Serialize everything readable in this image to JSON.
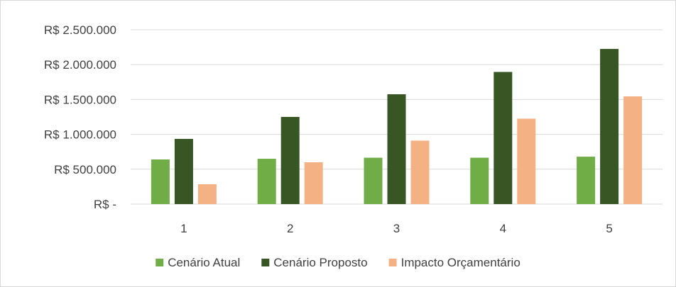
{
  "chart_data": {
    "type": "bar",
    "categories": [
      "1",
      "2",
      "3",
      "4",
      "5"
    ],
    "series": [
      {
        "name": "Cenário Atual",
        "color": "#70ad47",
        "values": [
          640000,
          650000,
          665000,
          665000,
          680000
        ]
      },
      {
        "name": "Cenário Proposto",
        "color": "#375623",
        "values": [
          935000,
          1250000,
          1575000,
          1895000,
          2225000
        ]
      },
      {
        "name": "Impacto Orçamentário",
        "color": "#f4b183",
        "values": [
          285000,
          600000,
          910000,
          1225000,
          1545000
        ]
      }
    ],
    "ylim": [
      0,
      2500000
    ],
    "y_ticks": [
      0,
      500000,
      1000000,
      1500000,
      2000000,
      2500000
    ],
    "y_tick_labels": [
      "R$ -",
      "R$ 500.000",
      "R$ 1.000.000",
      "R$ 1.500.000",
      "R$ 2.000.000",
      "R$ 2.500.000"
    ],
    "grid": true,
    "legend_position": "bottom"
  }
}
